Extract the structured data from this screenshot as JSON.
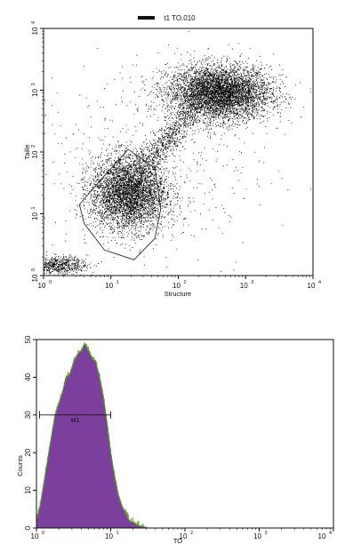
{
  "chart_data": [
    {
      "type": "scatter",
      "title": "t1 TO.010",
      "xlabel": "Structure",
      "ylabel": "Taille",
      "xscale": "log",
      "yscale": "log",
      "xlim": [
        1,
        10000
      ],
      "ylim": [
        1,
        10000
      ],
      "xticks": [
        "10",
        "10",
        "10",
        "10",
        "10"
      ],
      "xtick_exps": [
        "0",
        "1",
        "2",
        "3",
        "4"
      ],
      "yticks": [
        "10",
        "10",
        "10",
        "10",
        "10"
      ],
      "ytick_exps": [
        "0",
        "1",
        "2",
        "3",
        "4"
      ],
      "grid": false,
      "point_color": "#000000",
      "clusters": [
        {
          "center": [
            400,
            900
          ],
          "spread_decades": [
            0.38,
            0.22
          ],
          "points": 5200
        },
        {
          "center": [
            18,
            22
          ],
          "spread_decades": [
            0.28,
            0.3
          ],
          "points": 4200
        },
        {
          "center": [
            65,
            150
          ],
          "spread_decades": [
            0.2,
            0.22
          ],
          "points": 700
        },
        {
          "center": [
            1.6,
            1.5
          ],
          "spread_decades": [
            0.22,
            0.07
          ],
          "points": 650
        },
        {
          "center": [
            40,
            60
          ],
          "spread_decades": [
            0.9,
            0.9
          ],
          "points": 500
        }
      ],
      "gate_polygon": [
        [
          4,
          7
        ],
        [
          8,
          2.6
        ],
        [
          22,
          1.8
        ],
        [
          45,
          4
        ],
        [
          55,
          12
        ],
        [
          45,
          55
        ],
        [
          18,
          110
        ],
        [
          7,
          35
        ],
        [
          3.4,
          14
        ]
      ]
    },
    {
      "type": "histogram",
      "title": "",
      "xlabel": "TO",
      "ylabel": "Counts",
      "xscale": "log",
      "xlim": [
        1,
        10000
      ],
      "ylim": [
        0,
        50
      ],
      "xticks": [
        "10",
        "10",
        "10",
        "10",
        "10"
      ],
      "xtick_exps": [
        "0",
        "1",
        "2",
        "3",
        "4"
      ],
      "yticks": [
        "0",
        "10",
        "20",
        "30",
        "40",
        "50"
      ],
      "grid": false,
      "fill_color": "#7d3f9d",
      "edge_color": "#5a9a2c",
      "bins_decades": [
        0,
        0.05,
        0.1,
        0.15,
        0.2,
        0.25,
        0.3,
        0.35,
        0.4,
        0.45,
        0.5,
        0.55,
        0.6,
        0.65,
        0.7,
        0.75,
        0.8,
        0.85,
        0.9,
        0.95,
        1.0,
        1.05,
        1.1,
        1.15,
        1.2,
        1.25,
        1.3,
        1.35,
        1.4,
        1.45,
        1.5
      ],
      "counts": [
        2,
        6,
        12,
        18,
        24,
        30,
        33,
        36,
        40,
        41,
        44,
        46,
        47,
        49,
        47,
        45,
        44,
        40,
        35,
        28,
        20,
        14,
        9,
        6,
        4,
        2,
        1.5,
        1,
        0.5,
        0.3,
        0
      ],
      "markers": [
        {
          "label": "M1",
          "x_start": 1.1,
          "x_end": 10,
          "y": 30
        }
      ]
    }
  ]
}
